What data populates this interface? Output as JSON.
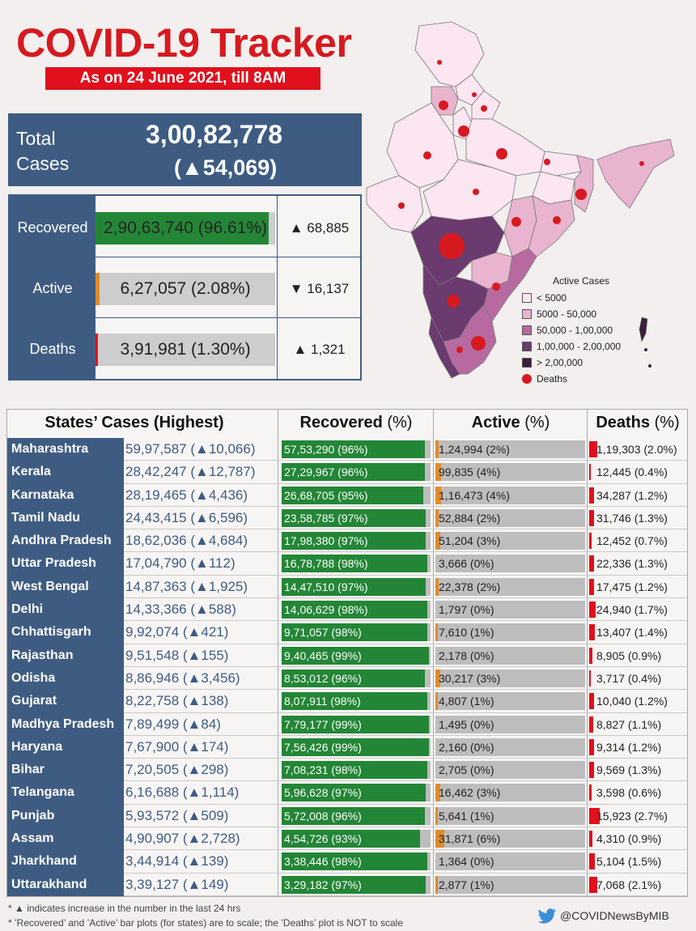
{
  "header": {
    "title": "COVID-19 Tracker",
    "subtitle": "As on 24 June 2021, till 8AM"
  },
  "total": {
    "label_line1": "Total",
    "label_line2": "Cases",
    "value": "3,00,82,778",
    "delta": "(▲54,069)"
  },
  "summary": [
    {
      "label": "Recovered",
      "value": "2,90,63,740",
      "pct_text": "(96.61%)",
      "pct": 96.61,
      "delta": "▲ 68,885",
      "color": "#238636"
    },
    {
      "label": "Active",
      "value": "6,27,057",
      "pct_text": "(2.08%)",
      "pct": 2.08,
      "delta": "▼ 16,137",
      "color": "#e08a2c"
    },
    {
      "label": "Deaths",
      "value": "3,91,981",
      "pct_text": "(1.30%)",
      "pct": 1.3,
      "delta": "▲ 1,321",
      "color": "#e0101d"
    }
  ],
  "legend": {
    "title": "Active Cases",
    "items": [
      {
        "label": "< 5000",
        "color": "#fbe6f1"
      },
      {
        "label": "5000 - 50,000",
        "color": "#e9b4cf"
      },
      {
        "label": "50,000 - 1,00,000",
        "color": "#b86aa0"
      },
      {
        "label": "1,00,000 - 2,00,000",
        "color": "#6b3a6e"
      },
      {
        "label": "> 2,00,000",
        "color": "#3b1f3c"
      }
    ],
    "deaths_label": "Deaths"
  },
  "table_headers": {
    "states": "States’ Cases (Highest)",
    "recovered": "Recovered",
    "active": "Active",
    "deaths": "Deaths",
    "pct_unit": "(%)"
  },
  "chart_data": {
    "type": "table",
    "title": "States’ Cases (Highest)",
    "rows": [
      {
        "state": "Maharashtra",
        "cases": "59,97,587 (▲10,066)",
        "recovered": "57,53,290 (96%)",
        "rec_pct": 96,
        "active": "1,24,994 (2%)",
        "act_pct": 2,
        "deaths": "1,19,303 (2.0%)",
        "death_pct": 2.0
      },
      {
        "state": "Kerala",
        "cases": "28,42,247 (▲12,787)",
        "recovered": "27,29,967 (96%)",
        "rec_pct": 96,
        "active": "99,835 (4%)",
        "act_pct": 4,
        "deaths": "12,445 (0.4%)",
        "death_pct": 0.4
      },
      {
        "state": "Karnataka",
        "cases": "28,19,465 (▲4,436)",
        "recovered": "26,68,705 (95%)",
        "rec_pct": 95,
        "active": "1,16,473 (4%)",
        "act_pct": 4,
        "deaths": "34,287 (1.2%)",
        "death_pct": 1.2
      },
      {
        "state": "Tamil Nadu",
        "cases": "24,43,415 (▲6,596)",
        "recovered": "23,58,785 (97%)",
        "rec_pct": 97,
        "active": "52,884 (2%)",
        "act_pct": 2,
        "deaths": "31,746 (1.3%)",
        "death_pct": 1.3
      },
      {
        "state": "Andhra Pradesh",
        "cases": "18,62,036 (▲4,684)",
        "recovered": "17,98,380 (97%)",
        "rec_pct": 97,
        "active": "51,204 (3%)",
        "act_pct": 3,
        "deaths": "12,452 (0.7%)",
        "death_pct": 0.7
      },
      {
        "state": "Uttar Pradesh",
        "cases": "17,04,790 (▲112)",
        "recovered": "16,78,788 (98%)",
        "rec_pct": 98,
        "active": "3,666 (0%)",
        "act_pct": 0,
        "deaths": "22,336 (1.3%)",
        "death_pct": 1.3
      },
      {
        "state": "West Bengal",
        "cases": "14,87,363 (▲1,925)",
        "recovered": "14,47,510 (97%)",
        "rec_pct": 97,
        "active": "22,378 (2%)",
        "act_pct": 2,
        "deaths": "17,475 (1.2%)",
        "death_pct": 1.2
      },
      {
        "state": "Delhi",
        "cases": "14,33,366 (▲588)",
        "recovered": "14,06,629 (98%)",
        "rec_pct": 98,
        "active": "1,797 (0%)",
        "act_pct": 0,
        "deaths": "24,940 (1.7%)",
        "death_pct": 1.7
      },
      {
        "state": "Chhattisgarh",
        "cases": "9,92,074 (▲421)",
        "recovered": "9,71,057 (98%)",
        "rec_pct": 98,
        "active": "7,610 (1%)",
        "act_pct": 1,
        "deaths": "13,407 (1.4%)",
        "death_pct": 1.4
      },
      {
        "state": "Rajasthan",
        "cases": "9,51,548 (▲155)",
        "recovered": "9,40,465 (99%)",
        "rec_pct": 99,
        "active": "2,178 (0%)",
        "act_pct": 0,
        "deaths": "8,905 (0.9%)",
        "death_pct": 0.9
      },
      {
        "state": "Odisha",
        "cases": "8,86,946 (▲3,456)",
        "recovered": "8,53,012 (96%)",
        "rec_pct": 96,
        "active": "30,217 (3%)",
        "act_pct": 3,
        "deaths": "3,717 (0.4%)",
        "death_pct": 0.4
      },
      {
        "state": "Gujarat",
        "cases": "8,22,758 (▲138)",
        "recovered": "8,07,911 (98%)",
        "rec_pct": 98,
        "active": "4,807 (1%)",
        "act_pct": 1,
        "deaths": "10,040 (1.2%)",
        "death_pct": 1.2
      },
      {
        "state": "Madhya Pradesh",
        "cases": "7,89,499 (▲84)",
        "recovered": "7,79,177 (99%)",
        "rec_pct": 99,
        "active": "1,495 (0%)",
        "act_pct": 0,
        "deaths": "8,827 (1.1%)",
        "death_pct": 1.1
      },
      {
        "state": "Haryana",
        "cases": "7,67,900 (▲174)",
        "recovered": "7,56,426 (99%)",
        "rec_pct": 99,
        "active": "2,160 (0%)",
        "act_pct": 0,
        "deaths": "9,314 (1.2%)",
        "death_pct": 1.2
      },
      {
        "state": "Bihar",
        "cases": "7,20,505 (▲298)",
        "recovered": "7,08,231 (98%)",
        "rec_pct": 98,
        "active": "2,705 (0%)",
        "act_pct": 0,
        "deaths": "9,569 (1.3%)",
        "death_pct": 1.3
      },
      {
        "state": "Telangana",
        "cases": "6,16,688 (▲1,114)",
        "recovered": "5,96,628 (97%)",
        "rec_pct": 97,
        "active": "16,462 (3%)",
        "act_pct": 3,
        "deaths": "3,598 (0.6%)",
        "death_pct": 0.6
      },
      {
        "state": "Punjab",
        "cases": "5,93,572 (▲509)",
        "recovered": "5,72,008 (96%)",
        "rec_pct": 96,
        "active": "5,641 (1%)",
        "act_pct": 1,
        "deaths": "15,923 (2.7%)",
        "death_pct": 2.7
      },
      {
        "state": "Assam",
        "cases": "4,90,907 (▲2,728)",
        "recovered": "4,54,726 (93%)",
        "rec_pct": 93,
        "active": "31,871 (6%)",
        "act_pct": 6,
        "deaths": "4,310 (0.9%)",
        "death_pct": 0.9
      },
      {
        "state": "Jharkhand",
        "cases": "3,44,914 (▲139)",
        "recovered": "3,38,446 (98%)",
        "rec_pct": 98,
        "active": "1,364 (0%)",
        "act_pct": 0,
        "deaths": "5,104 (1.5%)",
        "death_pct": 1.5
      },
      {
        "state": "Uttarakhand",
        "cases": "3,39,127 (▲149)",
        "recovered": "3,29,182 (97%)",
        "rec_pct": 97,
        "active": "2,877 (1%)",
        "act_pct": 1,
        "deaths": "7,068 (2.1%)",
        "death_pct": 2.1
      }
    ]
  },
  "notes": {
    "line1": "* ▲ indicates increase in the number in the last 24 hrs",
    "line2": "* ’Recovered’ and ’Active’ bar plots (for states) are to scale; the ’Deaths’ plot is NOT to scale"
  },
  "twitter_handle": "@COVIDNewsByMIB",
  "colors": {
    "navy": "#3e5c82",
    "title_red": "#d71920",
    "recovered_green": "#238636",
    "active_orange": "#e08a2c",
    "deaths_red": "#e0101d"
  }
}
